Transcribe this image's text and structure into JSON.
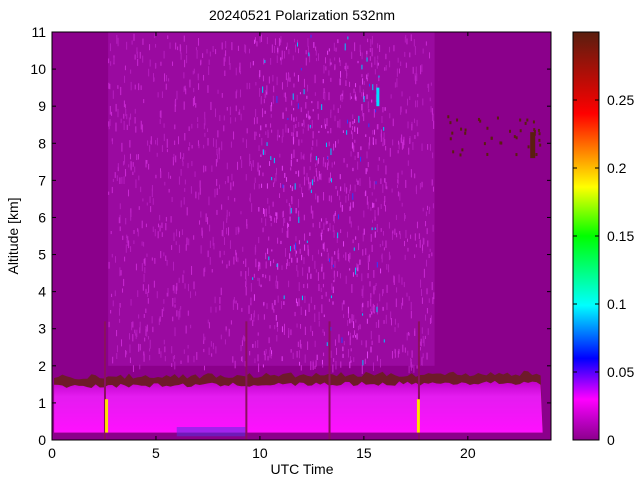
{
  "chart_data": {
    "type": "heatmap",
    "title": "20240521 Polarization 532nm",
    "xlabel": "UTC Time",
    "ylabel": "Altitude [km]",
    "xlim": [
      0,
      24
    ],
    "ylim": [
      0,
      11
    ],
    "x_ticks": [
      "0",
      "5",
      "10",
      "15",
      "20"
    ],
    "x_tick_values": [
      0,
      5,
      10,
      15,
      20
    ],
    "y_ticks": [
      "0",
      "1",
      "2",
      "3",
      "4",
      "5",
      "6",
      "7",
      "8",
      "9",
      "10",
      "11"
    ],
    "y_tick_values": [
      0,
      1,
      2,
      3,
      4,
      5,
      6,
      7,
      8,
      9,
      10,
      11
    ],
    "colorbar": {
      "range": [
        0,
        0.3
      ],
      "ticks": [
        "0",
        "0.05",
        "0.1",
        "0.15",
        "0.2",
        "0.25"
      ],
      "tick_values": [
        0,
        0.05,
        0.1,
        0.15,
        0.2,
        0.25
      ],
      "colormap": [
        "#8b008b",
        "#ff00ff",
        "#0000ff",
        "#00ffff",
        "#00ff00",
        "#ffff00",
        "#ff0000",
        "#5a1e0f"
      ]
    },
    "background_value": 0.0,
    "features": {
      "boundary_layer": {
        "top_km_left": 1.7,
        "top_km_right": 1.8,
        "value_range": [
          0.01,
          0.03
        ]
      },
      "noise_region": {
        "t_start": 2.7,
        "t_end": 18.4,
        "alt_min_km": 2.0,
        "alt_max_km": 11.0,
        "value": 0.01
      },
      "vertical_streaks_utc": [
        2.5,
        9.3,
        13.3,
        17.6
      ],
      "high_values_near_ground_utc": [
        2.6,
        17.6
      ],
      "elevated_feature": {
        "t_start": 19.0,
        "t_end": 23.6,
        "alt_km": [
          7.7,
          8.8
        ],
        "value": 0.3
      }
    }
  }
}
